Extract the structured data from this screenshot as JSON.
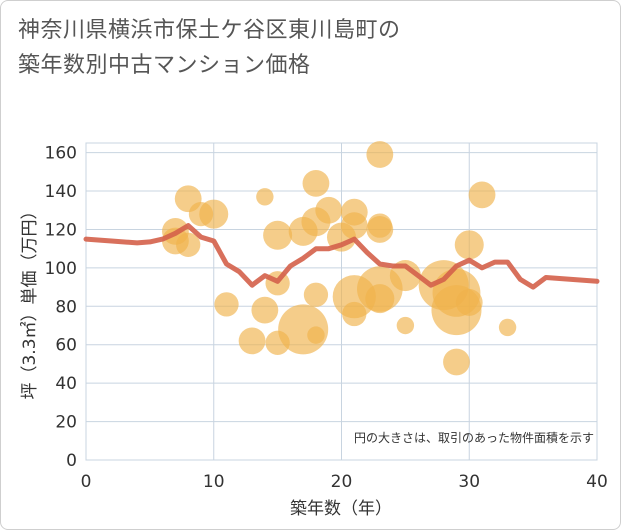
{
  "title": {
    "line1": "神奈川県横浜市保土ケ谷区東川島町の",
    "line2": "築年数別中古マンション価格"
  },
  "chart_data": {
    "type": "scatter",
    "title": "神奈川県横浜市保土ケ谷区東川島町の築年数別中古マンション価格",
    "xlabel": "築年数（年）",
    "ylabel": "坪（3.3㎡）単価（万円）",
    "xlim": [
      0,
      40
    ],
    "ylim": [
      0,
      165
    ],
    "xticks": [
      0,
      10,
      20,
      30,
      40
    ],
    "yticks": [
      0,
      20,
      40,
      60,
      80,
      100,
      120,
      140,
      160
    ],
    "grid": true,
    "note": "円の大きさは、取引のあった物件面積を示す",
    "colors": {
      "bubble": "#f0b24b",
      "line": "#d4604a",
      "grid": "#c8d4e0"
    },
    "scatter_points": [
      {
        "x": 7,
        "y": 114,
        "size": 4
      },
      {
        "x": 7,
        "y": 119,
        "size": 4
      },
      {
        "x": 8,
        "y": 136,
        "size": 4
      },
      {
        "x": 8,
        "y": 112,
        "size": 3
      },
      {
        "x": 9,
        "y": 128,
        "size": 3
      },
      {
        "x": 10,
        "y": 128,
        "size": 5
      },
      {
        "x": 11,
        "y": 81,
        "size": 3
      },
      {
        "x": 13,
        "y": 62,
        "size": 4
      },
      {
        "x": 14,
        "y": 137,
        "size": 1
      },
      {
        "x": 14,
        "y": 78,
        "size": 4
      },
      {
        "x": 15,
        "y": 117,
        "size": 5
      },
      {
        "x": 15,
        "y": 92,
        "size": 3
      },
      {
        "x": 15,
        "y": 61,
        "size": 3
      },
      {
        "x": 17,
        "y": 68,
        "size": 20
      },
      {
        "x": 17,
        "y": 119,
        "size": 5
      },
      {
        "x": 18,
        "y": 144,
        "size": 4
      },
      {
        "x": 18,
        "y": 124,
        "size": 5
      },
      {
        "x": 18,
        "y": 86,
        "size": 3
      },
      {
        "x": 18,
        "y": 65,
        "size": 1
      },
      {
        "x": 19,
        "y": 130,
        "size": 4
      },
      {
        "x": 20,
        "y": 116,
        "size": 5
      },
      {
        "x": 21,
        "y": 129,
        "size": 4
      },
      {
        "x": 21,
        "y": 122,
        "size": 4
      },
      {
        "x": 21,
        "y": 85,
        "size": 14
      },
      {
        "x": 21,
        "y": 76,
        "size": 3
      },
      {
        "x": 23,
        "y": 159,
        "size": 4
      },
      {
        "x": 23,
        "y": 122,
        "size": 3
      },
      {
        "x": 23,
        "y": 120,
        "size": 4
      },
      {
        "x": 23,
        "y": 89,
        "size": 16
      },
      {
        "x": 23,
        "y": 84,
        "size": 5
      },
      {
        "x": 25,
        "y": 70,
        "size": 1
      },
      {
        "x": 25,
        "y": 96,
        "size": 6
      },
      {
        "x": 28,
        "y": 91,
        "size": 20
      },
      {
        "x": 29,
        "y": 87,
        "size": 18
      },
      {
        "x": 29,
        "y": 78,
        "size": 20
      },
      {
        "x": 29,
        "y": 51,
        "size": 4
      },
      {
        "x": 30,
        "y": 112,
        "size": 5
      },
      {
        "x": 30,
        "y": 82,
        "size": 4
      },
      {
        "x": 31,
        "y": 138,
        "size": 4
      },
      {
        "x": 33,
        "y": 69,
        "size": 1
      }
    ],
    "trend_line": {
      "x": [
        0,
        2,
        4,
        5,
        6,
        7,
        8,
        9,
        10,
        11,
        12,
        13,
        14,
        15,
        16,
        17,
        18,
        19,
        20,
        21,
        22,
        23,
        24,
        25,
        26,
        27,
        28,
        29,
        30,
        31,
        32,
        33,
        34,
        35,
        36,
        40
      ],
      "y": [
        115,
        114,
        113,
        113.5,
        115,
        118,
        122,
        116,
        114,
        102,
        98,
        91,
        96,
        93,
        101,
        105,
        110,
        110,
        112,
        115,
        108,
        102,
        101,
        101,
        96,
        91,
        94,
        101,
        104,
        100,
        103,
        103,
        94,
        90,
        95,
        93
      ]
    }
  }
}
